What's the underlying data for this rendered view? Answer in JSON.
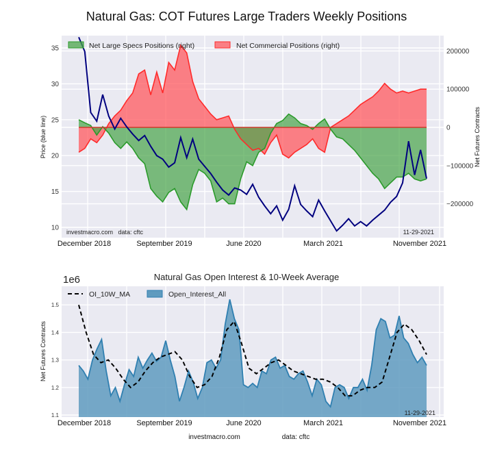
{
  "title": "Natural Gas: COT Futures Large Traders Weekly Positions",
  "colors": {
    "plot_bg": "#eaeaf2",
    "grid": "#ffffff",
    "price_line": "#00007f",
    "specs_fill": "#4ca64c",
    "specs_line": "#2a9a2a",
    "comm_fill": "#ff5a5f",
    "comm_line": "#ff2a2a",
    "oi_fill": "#5f9bbf",
    "oi_line": "#2f7fb0",
    "ma_line": "#000000"
  },
  "chart_data": [
    {
      "type": "line",
      "title": "Natural Gas: COT Futures Large Traders Weekly Positions",
      "xlabel": "",
      "ylabel": "Price (blue line)",
      "y2label": "Net Futures Contracts",
      "x_tick_labels": [
        "December 2018",
        "September 2019",
        "June 2020",
        "March 2021",
        "November 2021"
      ],
      "ylim": [
        9,
        36.5
      ],
      "y_ticks": [
        10,
        15,
        20,
        25,
        30,
        35
      ],
      "y2lim": [
        -270000,
        240000
      ],
      "y2_ticks": [
        -200000,
        -100000,
        0,
        100000,
        200000
      ],
      "y2_tick_labels": [
        "−200000",
        "−100000",
        "0",
        "100000",
        "200000"
      ],
      "grid": true,
      "legend_position": "top-left",
      "annotations": [
        "investmacro.com   data: cftc",
        "11-29-2021"
      ],
      "series": [
        {
          "name": "Price",
          "axis": "left",
          "values": [
            36.5,
            34.5,
            26.0,
            24.8,
            28.5,
            25.5,
            23.7,
            25.2,
            24.0,
            23.0,
            22.1,
            22.8,
            21.3,
            20.0,
            19.5,
            18.4,
            19.0,
            22.5,
            19.7,
            22.3,
            19.5,
            18.5,
            17.5,
            16.3,
            15.2,
            14.5,
            15.5,
            15.2,
            14.6,
            16.0,
            14.2,
            13.0,
            11.9,
            13.0,
            11.0,
            12.5,
            15.8,
            13.2,
            12.3,
            11.5,
            13.8,
            12.3,
            10.9,
            9.5,
            10.3,
            11.2,
            10.2,
            10.8,
            10.2,
            11.0,
            11.7,
            12.4,
            13.5,
            14.3,
            16.2,
            22.0,
            17.3,
            20.8,
            16.8
          ]
        },
        {
          "name": "Net Large Specs Positions (right)",
          "axis": "right",
          "values": [
            20000,
            12000,
            5000,
            -20000,
            2000,
            -15000,
            -40000,
            -55000,
            -38000,
            -55000,
            -80000,
            -95000,
            -160000,
            -180000,
            -195000,
            -170000,
            -160000,
            -195000,
            -215000,
            -150000,
            -110000,
            -120000,
            -140000,
            -195000,
            -185000,
            -200000,
            -200000,
            -135000,
            -90000,
            -100000,
            -65000,
            -55000,
            -15000,
            10000,
            18000,
            35000,
            25000,
            10000,
            5000,
            -5000,
            10000,
            22000,
            -5000,
            -25000,
            -30000,
            -45000,
            -60000,
            -80000,
            -100000,
            -120000,
            -135000,
            -160000,
            -145000,
            -130000,
            -130000,
            -120000,
            -135000,
            -140000,
            -135000
          ]
        },
        {
          "name": "Net Commercial Positions (right)",
          "axis": "right",
          "values": [
            -65000,
            -55000,
            -30000,
            -40000,
            -20000,
            10000,
            30000,
            45000,
            70000,
            90000,
            140000,
            150000,
            85000,
            145000,
            90000,
            170000,
            150000,
            215000,
            195000,
            120000,
            75000,
            55000,
            35000,
            20000,
            25000,
            30000,
            -5000,
            -30000,
            -45000,
            -60000,
            -55000,
            -70000,
            -40000,
            -20000,
            -70000,
            -80000,
            -65000,
            -55000,
            -45000,
            -30000,
            -55000,
            -65000,
            0,
            10000,
            20000,
            30000,
            45000,
            60000,
            70000,
            80000,
            95000,
            115000,
            100000,
            90000,
            95000,
            90000,
            95000,
            100000,
            100000
          ]
        }
      ]
    },
    {
      "type": "area",
      "title": "Natural Gas Open Interest & 10-Week Average",
      "xlabel": "",
      "ylabel": "Net Futures Contracts",
      "y_scale_label": "1e6",
      "x_tick_labels": [
        "December 2018",
        "September 2019",
        "June 2020",
        "March 2021",
        "November 2021"
      ],
      "ylim": [
        1.1,
        1.57
      ],
      "y_ticks": [
        1.1,
        1.2,
        1.3,
        1.4,
        1.5
      ],
      "grid": true,
      "legend_position": "top-left",
      "annotations": [
        "11-29-2021"
      ],
      "series": [
        {
          "name": "Open_Interest_All",
          "type": "area",
          "values": [
            1.28,
            1.26,
            1.23,
            1.3,
            1.34,
            1.375,
            1.26,
            1.17,
            1.2,
            1.15,
            1.21,
            1.265,
            1.24,
            1.31,
            1.27,
            1.3,
            1.325,
            1.295,
            1.31,
            1.37,
            1.3,
            1.24,
            1.15,
            1.2,
            1.26,
            1.22,
            1.16,
            1.2,
            1.29,
            1.3,
            1.27,
            1.3,
            1.43,
            1.52,
            1.45,
            1.41,
            1.21,
            1.2,
            1.215,
            1.2,
            1.26,
            1.25,
            1.3,
            1.31,
            1.27,
            1.28,
            1.24,
            1.23,
            1.25,
            1.26,
            1.22,
            1.17,
            1.23,
            1.21,
            1.15,
            1.13,
            1.2,
            1.21,
            1.2,
            1.16,
            1.2,
            1.2,
            1.23,
            1.19,
            1.28,
            1.41,
            1.45,
            1.44,
            1.38,
            1.39,
            1.46,
            1.38,
            1.36,
            1.32,
            1.29,
            1.31,
            1.28
          ]
        },
        {
          "name": "OI_10W_MA",
          "type": "line",
          "style": "dashed",
          "values": [
            1.5,
            1.4,
            1.32,
            1.29,
            1.3,
            1.27,
            1.23,
            1.2,
            1.22,
            1.26,
            1.29,
            1.31,
            1.32,
            1.33,
            1.3,
            1.24,
            1.2,
            1.21,
            1.24,
            1.31,
            1.41,
            1.44,
            1.36,
            1.27,
            1.25,
            1.27,
            1.29,
            1.3,
            1.28,
            1.26,
            1.25,
            1.24,
            1.23,
            1.23,
            1.22,
            1.2,
            1.17,
            1.17,
            1.19,
            1.2,
            1.2,
            1.22,
            1.31,
            1.4,
            1.43,
            1.41,
            1.37,
            1.32
          ]
        }
      ]
    }
  ],
  "top_chart": {
    "ylabel": "Price (blue line)",
    "y2label": "Net Futures Contracts",
    "legend": [
      "Net Large Specs Positions (right)",
      "Net Commercial Positions (right)"
    ],
    "watermark": "investmacro.com   data: cftc",
    "date_stamp": "11-29-2021"
  },
  "bottom_chart": {
    "title": "Natural Gas Open Interest & 10-Week Average",
    "scale_label": "1e6",
    "ylabel": "Net Futures Contracts",
    "legend": [
      "OI_10W_MA",
      "Open_Interest_All"
    ],
    "date_stamp": "11-29-2021"
  },
  "footer": {
    "site": "investmacro.com",
    "source": "data: cftc"
  }
}
